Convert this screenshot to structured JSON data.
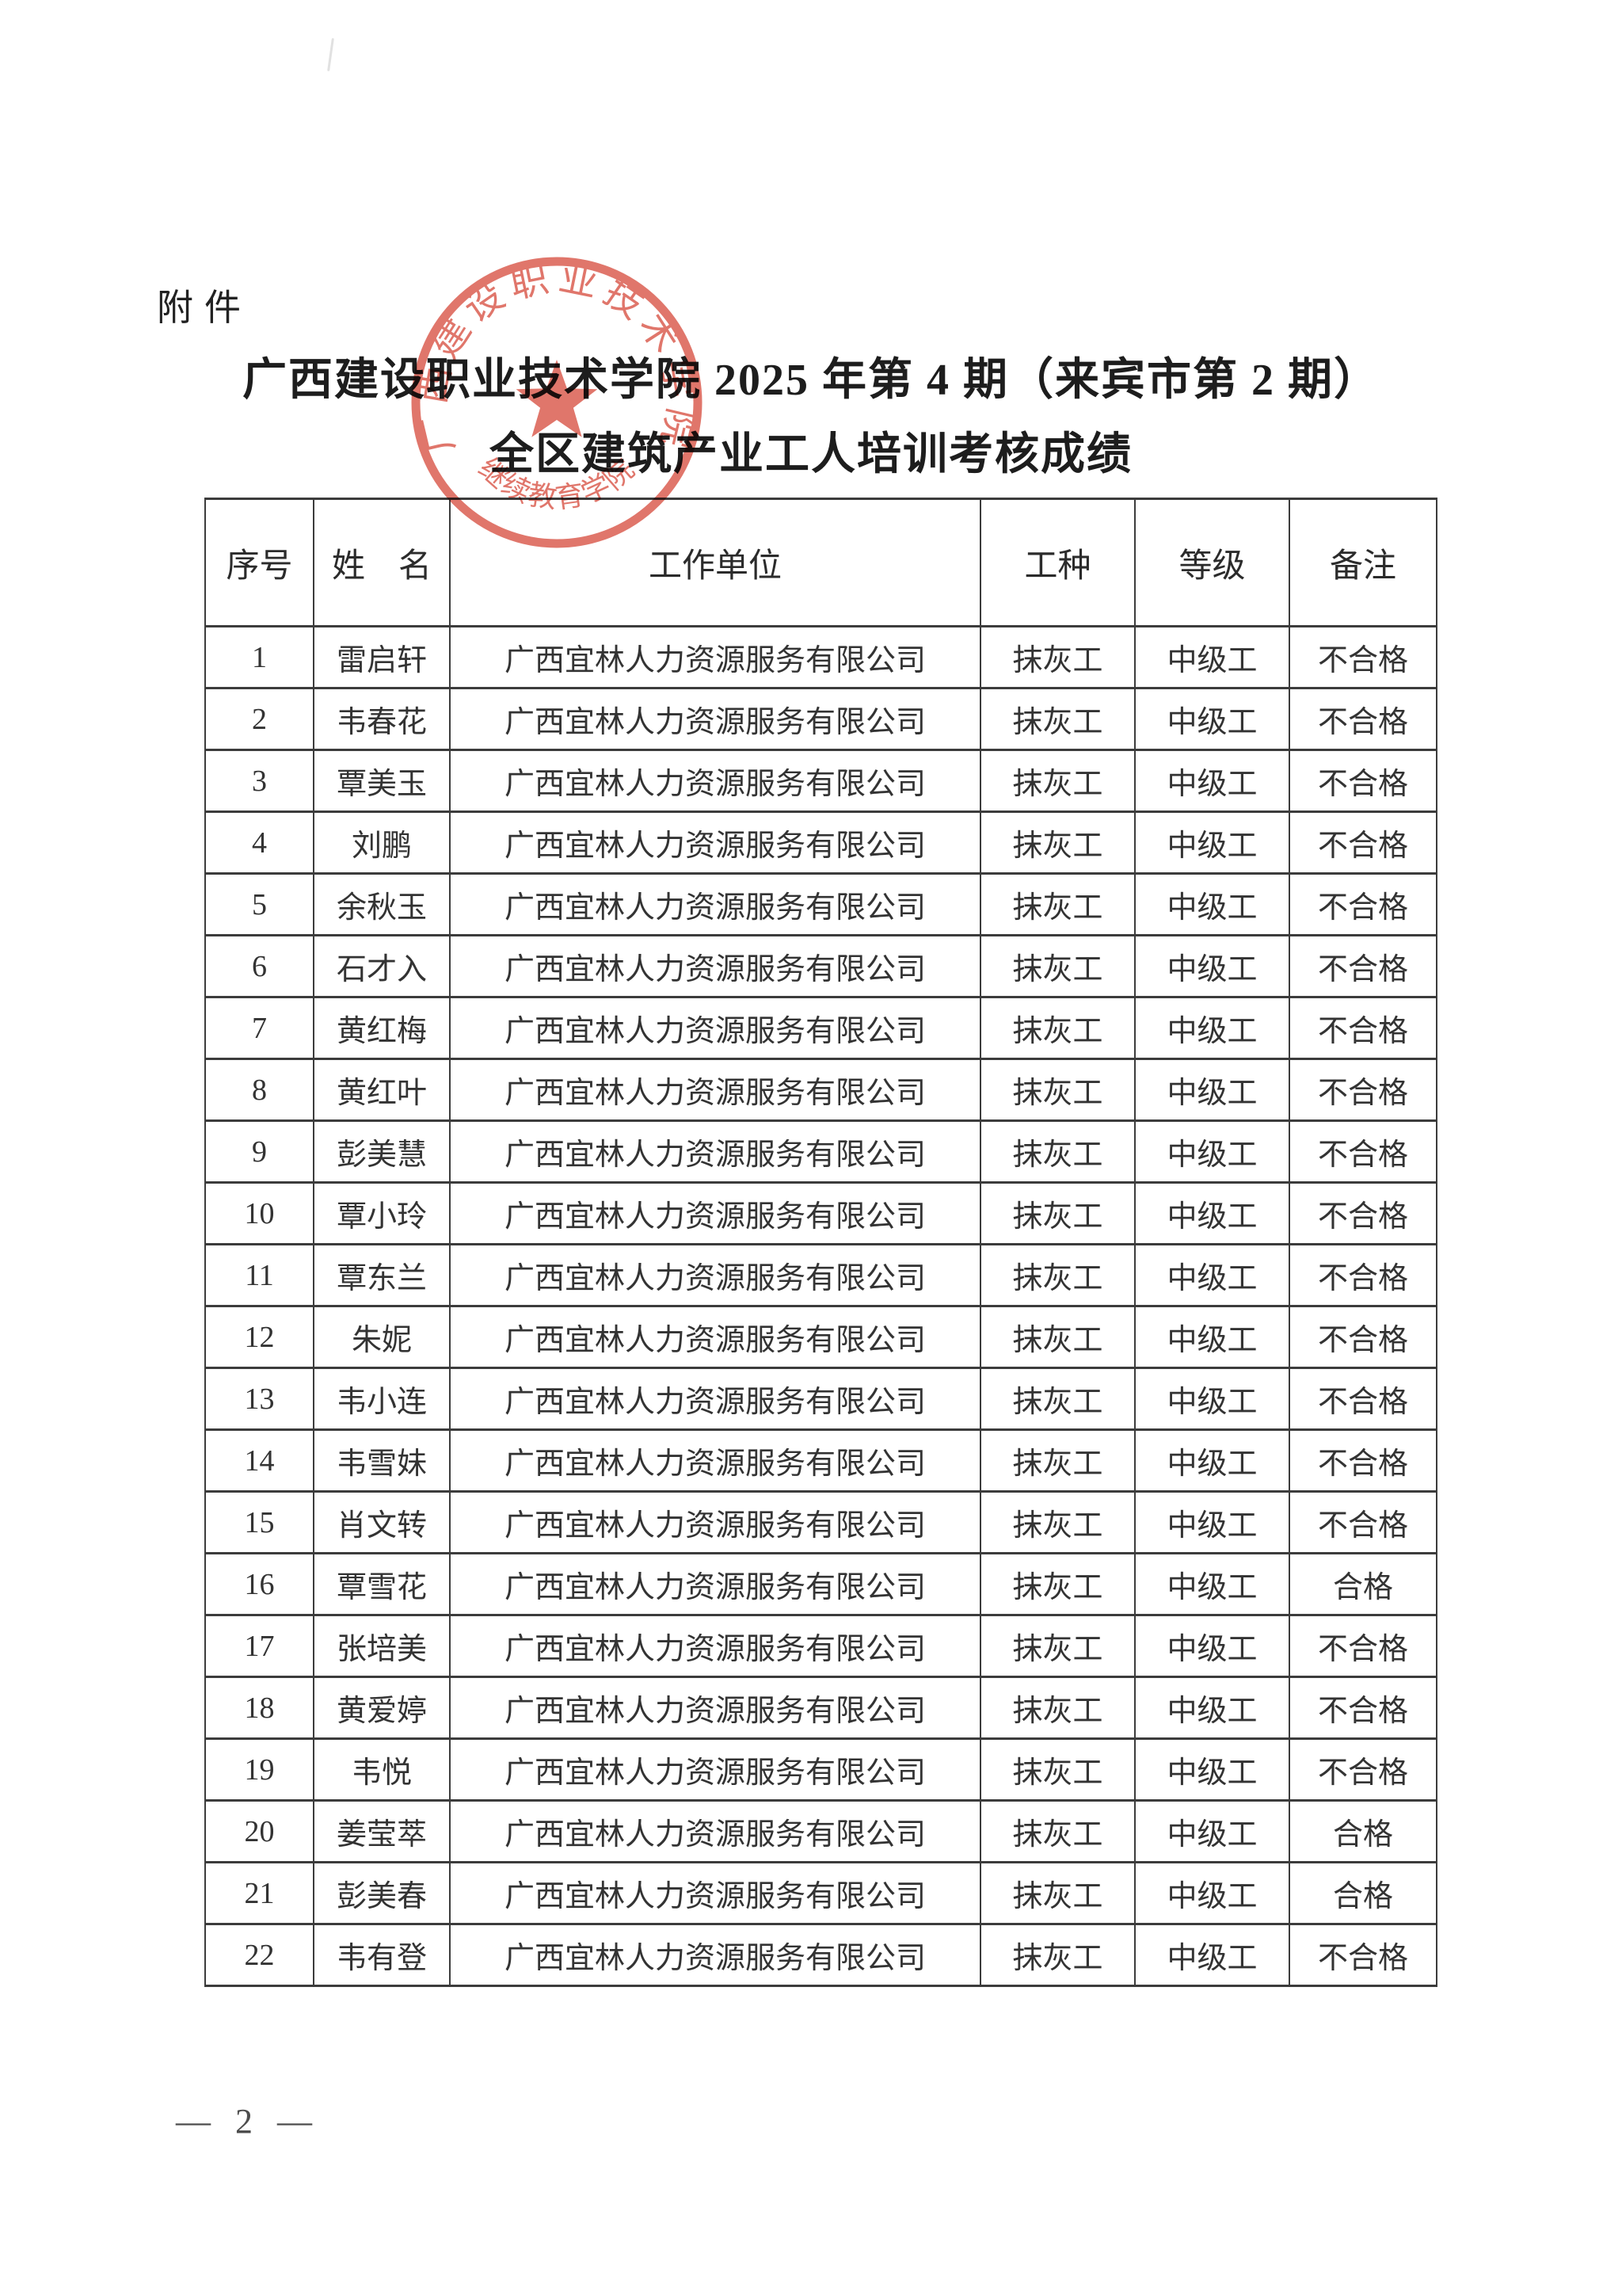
{
  "page": {
    "attachment_label": "附件",
    "title_line1": "广西建设职业技术学院 2025 年第 4 期（来宾市第 2 期）",
    "title_line2": "全区建筑产业工人培训考核成绩",
    "page_number": "— 2 —"
  },
  "stamp": {
    "ring_text": "广西建设职业技术学院",
    "bottom_text": "继续教育学院",
    "color": "#d9574a"
  },
  "table": {
    "headers": [
      "序号",
      "姓　名",
      "工作单位",
      "工种",
      "等级",
      "备注"
    ],
    "rows": [
      [
        "1",
        "雷启轩",
        "广西宜林人力资源服务有限公司",
        "抹灰工",
        "中级工",
        "不合格"
      ],
      [
        "2",
        "韦春花",
        "广西宜林人力资源服务有限公司",
        "抹灰工",
        "中级工",
        "不合格"
      ],
      [
        "3",
        "覃美玉",
        "广西宜林人力资源服务有限公司",
        "抹灰工",
        "中级工",
        "不合格"
      ],
      [
        "4",
        "刘鹏",
        "广西宜林人力资源服务有限公司",
        "抹灰工",
        "中级工",
        "不合格"
      ],
      [
        "5",
        "余秋玉",
        "广西宜林人力资源服务有限公司",
        "抹灰工",
        "中级工",
        "不合格"
      ],
      [
        "6",
        "石才入",
        "广西宜林人力资源服务有限公司",
        "抹灰工",
        "中级工",
        "不合格"
      ],
      [
        "7",
        "黄红梅",
        "广西宜林人力资源服务有限公司",
        "抹灰工",
        "中级工",
        "不合格"
      ],
      [
        "8",
        "黄红叶",
        "广西宜林人力资源服务有限公司",
        "抹灰工",
        "中级工",
        "不合格"
      ],
      [
        "9",
        "彭美慧",
        "广西宜林人力资源服务有限公司",
        "抹灰工",
        "中级工",
        "不合格"
      ],
      [
        "10",
        "覃小玲",
        "广西宜林人力资源服务有限公司",
        "抹灰工",
        "中级工",
        "不合格"
      ],
      [
        "11",
        "覃东兰",
        "广西宜林人力资源服务有限公司",
        "抹灰工",
        "中级工",
        "不合格"
      ],
      [
        "12",
        "朱妮",
        "广西宜林人力资源服务有限公司",
        "抹灰工",
        "中级工",
        "不合格"
      ],
      [
        "13",
        "韦小连",
        "广西宜林人力资源服务有限公司",
        "抹灰工",
        "中级工",
        "不合格"
      ],
      [
        "14",
        "韦雪妹",
        "广西宜林人力资源服务有限公司",
        "抹灰工",
        "中级工",
        "不合格"
      ],
      [
        "15",
        "肖文转",
        "广西宜林人力资源服务有限公司",
        "抹灰工",
        "中级工",
        "不合格"
      ],
      [
        "16",
        "覃雪花",
        "广西宜林人力资源服务有限公司",
        "抹灰工",
        "中级工",
        "合格"
      ],
      [
        "17",
        "张培美",
        "广西宜林人力资源服务有限公司",
        "抹灰工",
        "中级工",
        "不合格"
      ],
      [
        "18",
        "黄爱婷",
        "广西宜林人力资源服务有限公司",
        "抹灰工",
        "中级工",
        "不合格"
      ],
      [
        "19",
        "韦悦",
        "广西宜林人力资源服务有限公司",
        "抹灰工",
        "中级工",
        "不合格"
      ],
      [
        "20",
        "姜莹萃",
        "广西宜林人力资源服务有限公司",
        "抹灰工",
        "中级工",
        "合格"
      ],
      [
        "21",
        "彭美春",
        "广西宜林人力资源服务有限公司",
        "抹灰工",
        "中级工",
        "合格"
      ],
      [
        "22",
        "韦有登",
        "广西宜林人力资源服务有限公司",
        "抹灰工",
        "中级工",
        "不合格"
      ]
    ]
  }
}
